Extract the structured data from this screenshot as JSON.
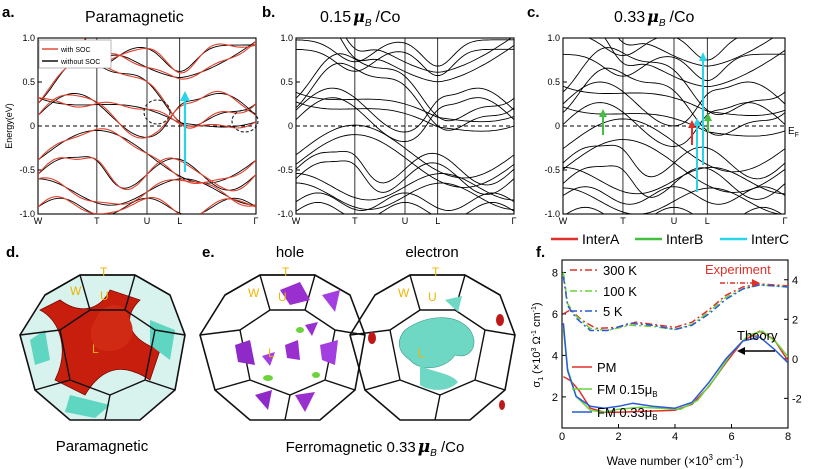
{
  "panels": {
    "a": {
      "label": "a.",
      "title": "Paramagnetic",
      "ylabel": "Energy(eV)",
      "yticks": [
        "1.0",
        "0.5",
        "0",
        "-0.5",
        "-1.0"
      ],
      "kpoints": [
        "W",
        "T",
        "U",
        "L",
        "Γ"
      ],
      "legend": [
        {
          "label": "with SOC",
          "color": "#e0402a"
        },
        {
          "label": "without SOC",
          "color": "#000000"
        }
      ]
    },
    "b": {
      "label": "b.",
      "title_value": "0.15",
      "title_unit": "μ",
      "title_sub": "B",
      "title_suffix": "/Co",
      "yticks": [
        "1.0",
        "0.5",
        "0",
        "-0.5",
        "-1.0"
      ],
      "kpoints": [
        "W",
        "T",
        "U",
        "L",
        "Γ"
      ]
    },
    "c": {
      "label": "c.",
      "title_value": "0.33",
      "title_unit": "μ",
      "title_sub": "B",
      "title_suffix": "/Co",
      "yticks": [
        "1.0",
        "0.5",
        "0",
        "-0.5",
        "-1.0"
      ],
      "kpoints": [
        "W",
        "T",
        "U",
        "L",
        "Γ"
      ],
      "fermi": "E",
      "fermi_sub": "F"
    },
    "d": {
      "label": "d.",
      "caption": "Paramagnetic",
      "points": [
        "T",
        "W",
        "U",
        "L"
      ]
    },
    "e": {
      "label": "e.",
      "hole": "hole",
      "electron": "electron",
      "points": [
        "T",
        "W",
        "U",
        "L"
      ],
      "caption_prefix": "Ferromagnetic 0.33",
      "caption_unit": "μ",
      "caption_sub": "B",
      "caption_suffix": " /Co"
    },
    "f": {
      "label": "f.",
      "xlabel": "Wave number (×10",
      "xlabel_sup": "3",
      "xlabel_end": " cm",
      "xlabel_sup2": "-1",
      "xlabel_close": ")",
      "ylabel": "σ",
      "ylabel_sub": "1",
      "ylabel_rest": " (×10",
      "ylabel_sup": "3",
      "ylabel_mid": " Ω",
      "ylabel_sup2": "-1",
      "ylabel_cm": " cm",
      "ylabel_sup3": "-1",
      "ylabel_close": ")",
      "xticks": [
        "0",
        "2",
        "4",
        "6",
        "8"
      ],
      "yticks_left": [
        "8",
        "6",
        "4",
        "2"
      ],
      "yticks_right": [
        "4",
        "2",
        "0",
        "-2"
      ],
      "experiment": "Experiment",
      "theory": "Theory",
      "legend_exp": [
        {
          "label": "300 K",
          "color": "#e0302a"
        },
        {
          "label": "100 K",
          "color": "#6ad43a"
        },
        {
          "label": "5 K",
          "color": "#2a5ad8"
        }
      ],
      "legend_theory": [
        {
          "label": "PM",
          "color": "#e0302a"
        },
        {
          "label": "FM 0.15",
          "sub": "B",
          "mu": "μ",
          "color": "#6ad43a"
        },
        {
          "label": "FM 0.33",
          "sub": "B",
          "mu": "μ",
          "color": "#2a5ad8"
        }
      ]
    },
    "transitions": [
      {
        "label": "InterA",
        "color": "#e0302a"
      },
      {
        "label": "InterB",
        "color": "#44c040"
      },
      {
        "label": "InterC",
        "color": "#29d4e8"
      }
    ]
  },
  "chart_data": [
    {
      "type": "line",
      "title": "Paramagnetic",
      "ylabel": "Energy(eV)",
      "ylim": [
        -1.0,
        1.0
      ],
      "kpath": [
        "W",
        "T",
        "U",
        "L",
        "Γ"
      ],
      "series": [
        {
          "name": "with SOC"
        },
        {
          "name": "without SOC"
        }
      ]
    },
    {
      "type": "line",
      "title": "0.15 μB /Co",
      "ylim": [
        -1.0,
        1.0
      ],
      "kpath": [
        "W",
        "T",
        "U",
        "L",
        "Γ"
      ]
    },
    {
      "type": "line",
      "title": "0.33 μB /Co",
      "ylim": [
        -1.0,
        1.0
      ],
      "kpath": [
        "W",
        "T",
        "U",
        "L",
        "Γ"
      ]
    },
    {
      "type": "line",
      "xlabel": "Wave number (×10^3 cm^-1)",
      "xlim": [
        0,
        8
      ],
      "ylim_left": [
        0.5,
        8.6
      ],
      "ylim_right": [
        -3.5,
        5.0
      ],
      "series": [
        {
          "name": "300 K",
          "axis": "left",
          "x": [
            0.05,
            0.3,
            0.7,
            1.2,
            2.0,
            2.6,
            3.2,
            4.0,
            4.6,
            5.2,
            5.8,
            6.4,
            7.0,
            7.5,
            8.0
          ],
          "y": [
            6.0,
            6.2,
            5.7,
            5.3,
            5.35,
            5.6,
            5.5,
            5.35,
            5.6,
            6.2,
            6.9,
            7.3,
            7.45,
            7.4,
            7.35
          ]
        },
        {
          "name": "100 K",
          "axis": "left",
          "x": [
            0.05,
            0.2,
            0.5,
            1.0,
            1.6,
            2.4,
            3.2,
            4.0,
            4.6,
            5.2,
            5.8,
            6.4,
            7.0,
            7.5,
            8.0
          ],
          "y": [
            8.0,
            6.5,
            5.9,
            5.3,
            5.2,
            5.45,
            5.4,
            5.25,
            5.5,
            6.1,
            6.8,
            7.2,
            7.4,
            7.35,
            7.3
          ]
        },
        {
          "name": "5 K",
          "axis": "left",
          "x": [
            0.05,
            0.2,
            0.5,
            1.0,
            1.6,
            2.4,
            3.2,
            4.0,
            4.6,
            5.2,
            5.8,
            6.4,
            7.0,
            7.5,
            8.0
          ],
          "y": [
            7.8,
            6.4,
            5.8,
            5.2,
            5.2,
            5.55,
            5.45,
            5.25,
            5.45,
            6.0,
            6.7,
            7.2,
            7.4,
            7.35,
            7.3
          ]
        },
        {
          "name": "PM",
          "axis": "right",
          "x": [
            0.05,
            0.3,
            0.6,
            1.0,
            1.5,
            2.0,
            3.0,
            4.0,
            4.6,
            5.2,
            5.8,
            6.4,
            7.0,
            7.5,
            8.0
          ],
          "y": [
            -0.9,
            -1.1,
            -1.6,
            -2.5,
            -2.7,
            -2.7,
            -2.65,
            -2.6,
            -2.3,
            -1.4,
            -0.2,
            0.9,
            1.4,
            1.0,
            -0.1
          ]
        },
        {
          "name": "FM 0.15μB",
          "axis": "right",
          "x": [
            0.05,
            0.2,
            0.5,
            1.0,
            1.5,
            2.0,
            2.8,
            3.5,
            4.2,
            4.8,
            5.4,
            6.0,
            6.6,
            7.1,
            7.6,
            8.0
          ],
          "y": [
            1.5,
            -0.5,
            -1.9,
            -2.6,
            -2.7,
            -2.55,
            -2.45,
            -2.5,
            -2.55,
            -2.1,
            -1.0,
            0.3,
            1.2,
            1.4,
            0.8,
            0.1
          ]
        },
        {
          "name": "FM 0.33μB",
          "axis": "right",
          "x": [
            0.05,
            0.2,
            0.5,
            1.0,
            1.5,
            2.0,
            2.5,
            3.2,
            4.0,
            4.6,
            5.2,
            5.8,
            6.4,
            7.0,
            7.5,
            8.0
          ],
          "y": [
            1.8,
            -0.6,
            -1.9,
            -2.4,
            -2.5,
            -2.4,
            -2.25,
            -2.4,
            -2.5,
            -2.2,
            -1.2,
            0.0,
            0.9,
            1.1,
            0.5,
            -0.2
          ]
        }
      ]
    }
  ]
}
